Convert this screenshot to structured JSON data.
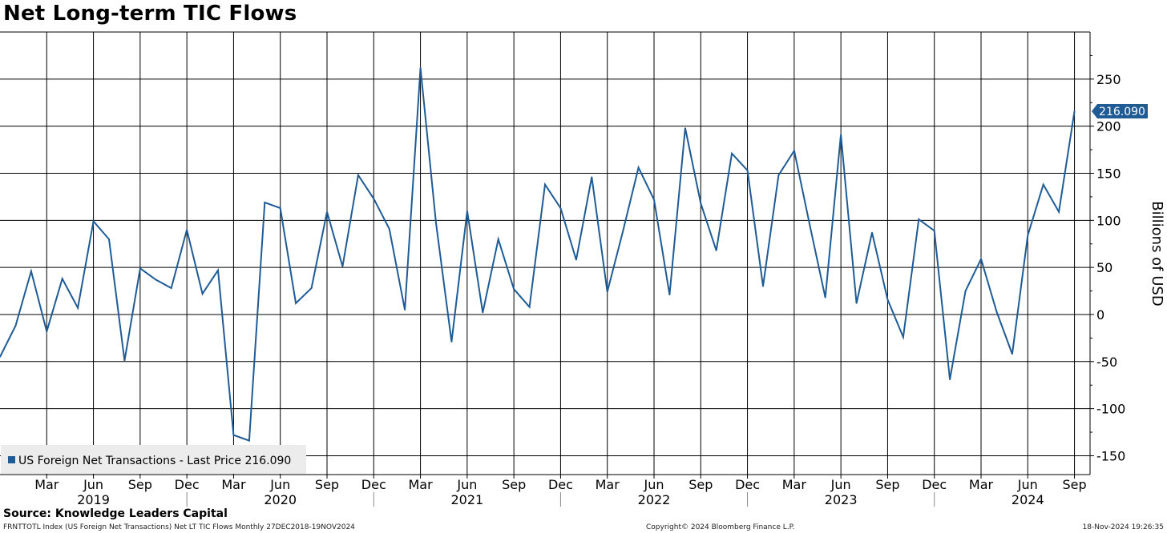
{
  "title": "Net Long-term TIC Flows",
  "source": "Source: Knowledge Leaders Capital",
  "footer": {
    "left": "FRNTTOTL Index (US Foreign Net Transactions) Net LT TIC Flows  Monthly 27DEC2018-19NOV2024",
    "center": "Copyright© 2024 Bloomberg Finance L.P.",
    "right": "18-Nov-2024 19:26:35"
  },
  "legend": {
    "text": "US Foreign Net Transactions - Last Price 216.090"
  },
  "last_price_label": "216.090",
  "colors": {
    "series": "#1f5b95",
    "grid": "#000000",
    "legend_bg": "#ececec"
  },
  "chart_data": {
    "type": "line",
    "ylabel": "Billions of USD",
    "ylim": [
      -170,
      300
    ],
    "yticks": [
      250,
      200,
      150,
      100,
      50,
      0,
      -50,
      -100,
      -150
    ],
    "ytick_labels": [
      "250",
      "200",
      "150",
      "100",
      "50",
      "0",
      "-50",
      "-100",
      "-150"
    ],
    "y_axis_side": "right",
    "grid": true,
    "legend_position": "bottom-left",
    "xlim": [
      "2018-12",
      "2024-10"
    ],
    "month_ticks": [
      {
        "date": "2019-03",
        "label": "Mar"
      },
      {
        "date": "2019-06",
        "label": "Jun"
      },
      {
        "date": "2019-09",
        "label": "Sep"
      },
      {
        "date": "2019-12",
        "label": "Dec"
      },
      {
        "date": "2020-03",
        "label": "Mar"
      },
      {
        "date": "2020-06",
        "label": "Jun"
      },
      {
        "date": "2020-09",
        "label": "Sep"
      },
      {
        "date": "2020-12",
        "label": "Dec"
      },
      {
        "date": "2021-03",
        "label": "Mar"
      },
      {
        "date": "2021-06",
        "label": "Jun"
      },
      {
        "date": "2021-09",
        "label": "Sep"
      },
      {
        "date": "2021-12",
        "label": "Dec"
      },
      {
        "date": "2022-03",
        "label": "Mar"
      },
      {
        "date": "2022-06",
        "label": "Jun"
      },
      {
        "date": "2022-09",
        "label": "Sep"
      },
      {
        "date": "2022-12",
        "label": "Dec"
      },
      {
        "date": "2023-03",
        "label": "Mar"
      },
      {
        "date": "2023-06",
        "label": "Jun"
      },
      {
        "date": "2023-09",
        "label": "Sep"
      },
      {
        "date": "2023-12",
        "label": "Dec"
      },
      {
        "date": "2024-03",
        "label": "Mar"
      },
      {
        "date": "2024-06",
        "label": "Jun"
      },
      {
        "date": "2024-09",
        "label": "Sep"
      }
    ],
    "year_labels": [
      {
        "date": "2019-06",
        "label": "2019"
      },
      {
        "date": "2020-06",
        "label": "2020"
      },
      {
        "date": "2021-06",
        "label": "2021"
      },
      {
        "date": "2022-06",
        "label": "2022"
      },
      {
        "date": "2023-06",
        "label": "2023"
      },
      {
        "date": "2024-06",
        "label": "2024"
      }
    ],
    "year_separators": [
      "2019-12",
      "2020-12",
      "2021-12",
      "2022-12",
      "2023-12"
    ],
    "series": [
      {
        "name": "US Foreign Net Transactions",
        "x": [
          "2018-12",
          "2019-01",
          "2019-02",
          "2019-03",
          "2019-04",
          "2019-05",
          "2019-06",
          "2019-07",
          "2019-08",
          "2019-09",
          "2019-10",
          "2019-11",
          "2019-12",
          "2020-01",
          "2020-02",
          "2020-03",
          "2020-04",
          "2020-05",
          "2020-06",
          "2020-07",
          "2020-08",
          "2020-09",
          "2020-10",
          "2020-11",
          "2020-12",
          "2021-01",
          "2021-02",
          "2021-03",
          "2021-04",
          "2021-05",
          "2021-06",
          "2021-07",
          "2021-08",
          "2021-09",
          "2021-10",
          "2021-11",
          "2021-12",
          "2022-01",
          "2022-02",
          "2022-03",
          "2022-04",
          "2022-05",
          "2022-06",
          "2022-07",
          "2022-08",
          "2022-09",
          "2022-10",
          "2022-11",
          "2022-12",
          "2023-01",
          "2023-02",
          "2023-03",
          "2023-04",
          "2023-05",
          "2023-06",
          "2023-07",
          "2023-08",
          "2023-09",
          "2023-10",
          "2023-11",
          "2023-12",
          "2024-01",
          "2024-02",
          "2024-03",
          "2024-04",
          "2024-05",
          "2024-06",
          "2024-07",
          "2024-08",
          "2024-09"
        ],
        "y": [
          -45,
          -12,
          46,
          -18,
          38,
          7,
          99,
          80,
          -49,
          49,
          37,
          28,
          90,
          22,
          47,
          -128,
          -134,
          119,
          113,
          12,
          28,
          109,
          51,
          148,
          123,
          91,
          5,
          262,
          97,
          -29,
          110,
          2,
          80,
          27,
          8,
          138,
          113,
          58,
          146,
          24,
          88,
          156,
          122,
          21,
          198,
          118,
          68,
          171,
          153,
          30,
          148,
          174,
          95,
          18,
          191,
          12,
          87,
          16,
          -24,
          101,
          89,
          -69,
          25,
          59,
          3,
          -42,
          84,
          138,
          109,
          216.09
        ]
      }
    ]
  }
}
